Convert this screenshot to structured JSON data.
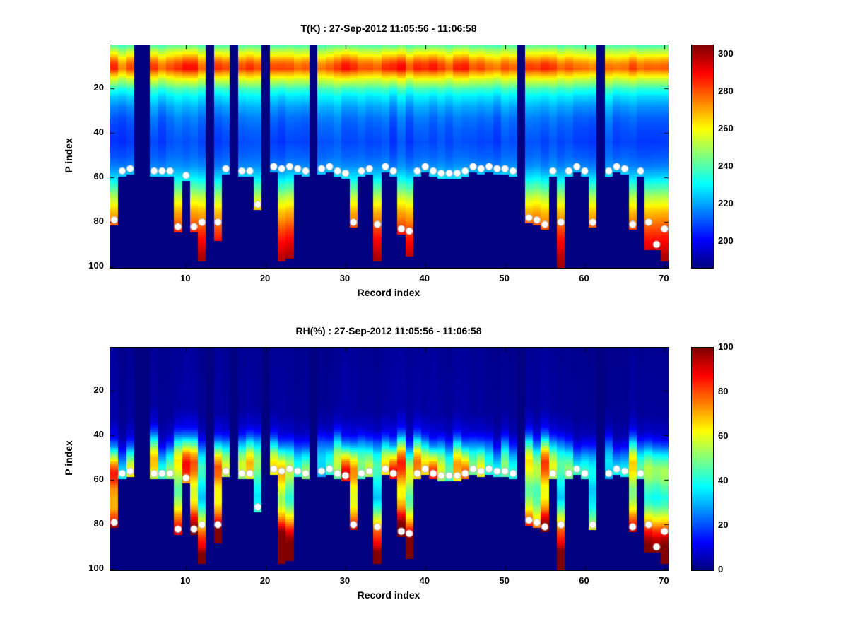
{
  "figure": {
    "background": "#ffffff"
  },
  "records": {
    "count": 70,
    "missing": [
      4,
      5,
      13,
      16,
      20,
      26,
      52,
      62
    ],
    "surface_p": [
      79,
      57,
      56,
      null,
      null,
      57,
      57,
      57,
      82,
      59,
      82,
      80,
      null,
      80,
      56,
      null,
      57,
      57,
      72,
      null,
      55,
      56,
      55,
      56,
      57,
      null,
      56,
      55,
      57,
      58,
      80,
      57,
      56,
      81,
      55,
      57,
      83,
      84,
      57,
      55,
      57,
      58,
      58,
      58,
      57,
      55,
      56,
      55,
      56,
      56,
      57,
      null,
      78,
      79,
      81,
      57,
      80,
      57,
      55,
      57,
      80,
      null,
      57,
      55,
      56,
      81,
      57,
      80,
      90,
      83
    ],
    "data_bottom_overrides": {
      "12": 97,
      "14": 88,
      "22": 97,
      "23": 96,
      "34": 97,
      "38": 95,
      "57": 100,
      "68": 92,
      "70": 97
    }
  },
  "chart_data": [
    {
      "id": "temperature",
      "type": "heatmap",
      "title": "T(K) : 27-Sep-2012 11:05:56 - 11:06:58",
      "xlabel": "Record index",
      "ylabel": "P index",
      "x_range": [
        1,
        70
      ],
      "y_range": [
        1,
        100
      ],
      "y_inverted": true,
      "x_ticks": [
        10,
        20,
        30,
        40,
        50,
        60,
        70
      ],
      "y_ticks": [
        20,
        40,
        60,
        80,
        100
      ],
      "colormap": "jet",
      "grid": false,
      "colorbar": {
        "min": 186,
        "max": 305,
        "ticks": [
          200,
          220,
          240,
          260,
          280,
          300
        ]
      },
      "profile": {
        "p": [
          1,
          3,
          6,
          9,
          11,
          13,
          16,
          20,
          24,
          28,
          33,
          38,
          44,
          50,
          55,
          60,
          65,
          70,
          75,
          80,
          85,
          90,
          95,
          100
        ],
        "value": [
          242,
          252,
          268,
          280,
          283,
          272,
          256,
          238,
          227,
          220,
          214,
          211,
          209,
          212,
          217,
          228,
          242,
          256,
          268,
          277,
          286,
          293,
          299,
          303
        ]
      },
      "markers": {
        "shape": "circle",
        "fill": "#ffffff"
      }
    },
    {
      "id": "relative-humidity",
      "type": "heatmap",
      "title": "RH(%) : 27-Sep-2012 11:05:56 - 11:06:58",
      "xlabel": "Record index",
      "ylabel": "P index",
      "x_range": [
        1,
        70
      ],
      "y_range": [
        1,
        100
      ],
      "y_inverted": true,
      "x_ticks": [
        10,
        20,
        30,
        40,
        50,
        60,
        70
      ],
      "y_ticks": [
        20,
        40,
        60,
        80,
        100
      ],
      "colormap": "jet",
      "grid": false,
      "colorbar": {
        "min": 0,
        "max": 100,
        "ticks": [
          0,
          20,
          40,
          60,
          80,
          100
        ]
      },
      "profile": {
        "p": [
          1,
          30,
          38,
          42,
          46,
          50,
          54,
          58,
          62,
          66,
          70,
          75,
          80,
          85,
          90,
          95,
          100
        ],
        "value": [
          2,
          3,
          8,
          18,
          35,
          52,
          62,
          60,
          52,
          46,
          42,
          46,
          55,
          62,
          58,
          68,
          75
        ]
      },
      "markers": {
        "shape": "circle",
        "fill": "#ffffff"
      }
    }
  ]
}
